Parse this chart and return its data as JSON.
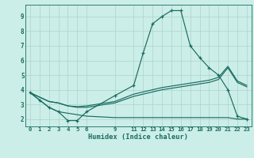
{
  "xlabel": "Humidex (Indice chaleur)",
  "bg_color": "#cceee8",
  "grid_color": "#aad4cc",
  "line_color": "#1a6b60",
  "xlim": [
    -0.5,
    23.5
  ],
  "ylim": [
    1.5,
    9.8
  ],
  "xticks": [
    0,
    1,
    2,
    3,
    4,
    5,
    6,
    9,
    11,
    12,
    13,
    14,
    15,
    16,
    17,
    18,
    19,
    20,
    21,
    22,
    23
  ],
  "yticks": [
    2,
    3,
    4,
    5,
    6,
    7,
    8,
    9
  ],
  "series": [
    {
      "x": [
        0,
        1,
        2,
        3,
        4,
        5,
        6,
        9,
        11,
        12,
        13,
        14,
        15,
        16,
        17,
        18,
        19,
        20,
        21,
        22,
        23
      ],
      "y": [
        3.8,
        3.3,
        2.8,
        2.5,
        1.9,
        1.9,
        2.5,
        3.6,
        4.3,
        6.5,
        8.5,
        9.0,
        9.4,
        9.4,
        7.0,
        6.2,
        5.5,
        5.0,
        4.0,
        2.2,
        2.0
      ],
      "marker": true
    },
    {
      "x": [
        0,
        1,
        2,
        3,
        4,
        5,
        6,
        9,
        11,
        12,
        13,
        14,
        15,
        16,
        17,
        18,
        19,
        20,
        21,
        22,
        23
      ],
      "y": [
        3.8,
        3.3,
        2.8,
        2.5,
        2.4,
        2.3,
        2.2,
        2.1,
        2.1,
        2.1,
        2.1,
        2.1,
        2.1,
        2.1,
        2.1,
        2.1,
        2.1,
        2.1,
        2.1,
        2.0,
        2.0
      ],
      "marker": false
    },
    {
      "x": [
        0,
        1,
        2,
        3,
        4,
        5,
        6,
        9,
        11,
        12,
        13,
        14,
        15,
        16,
        17,
        18,
        19,
        20,
        21,
        22,
        23
      ],
      "y": [
        3.8,
        3.5,
        3.2,
        3.1,
        2.9,
        2.8,
        2.8,
        3.1,
        3.55,
        3.7,
        3.85,
        4.0,
        4.1,
        4.2,
        4.3,
        4.4,
        4.5,
        4.7,
        5.5,
        4.5,
        4.2
      ],
      "marker": false
    },
    {
      "x": [
        0,
        1,
        2,
        3,
        4,
        5,
        6,
        9,
        11,
        12,
        13,
        14,
        15,
        16,
        17,
        18,
        19,
        20,
        21,
        22,
        23
      ],
      "y": [
        3.8,
        3.5,
        3.2,
        3.1,
        2.9,
        2.85,
        2.9,
        3.2,
        3.7,
        3.85,
        4.0,
        4.15,
        4.25,
        4.35,
        4.45,
        4.55,
        4.65,
        4.85,
        5.6,
        4.6,
        4.3
      ],
      "marker": false
    }
  ]
}
